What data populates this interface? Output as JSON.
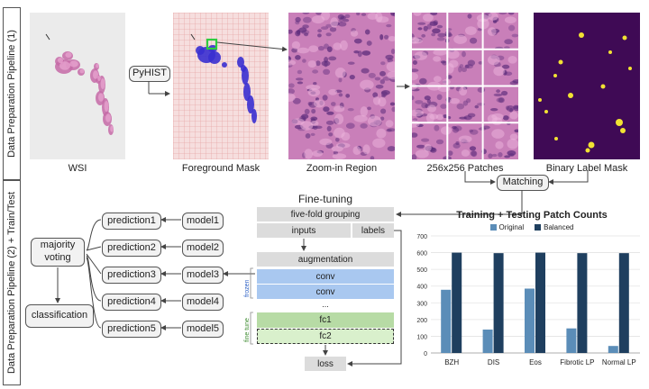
{
  "pipeline1": {
    "side_label": "Data Preparation Pipeline (1)",
    "captions": {
      "wsi": "WSI",
      "foreground_mask": "Foreground Mask",
      "zoom_in": "Zoom-in Region",
      "patches": "256x256 Patches",
      "binary_mask": "Binary Label Mask"
    },
    "pyhist_label": "PyHIST",
    "matching_label": "Matching"
  },
  "pipeline2": {
    "side_label": "Data Preparation Pipeline (2) + Train/Test",
    "majority_voting": "majority voting",
    "classification": "classification",
    "predictions": [
      "prediction1",
      "prediction2",
      "prediction3",
      "prediction4",
      "prediction5"
    ],
    "models": [
      "model1",
      "model2",
      "model3",
      "model4",
      "model5"
    ]
  },
  "finetune": {
    "title": "Fine-tuning",
    "grouping": "five-fold grouping",
    "inputs": "inputs",
    "labels": "labels",
    "augmentation": "augmentation",
    "conv1": "conv",
    "conv2": "conv",
    "ellipsis": "...",
    "fc1": "fc1",
    "fc2": "fc2",
    "loss": "loss",
    "frozen_label": "frozen",
    "finetune_label": "fine tune"
  },
  "chart_data": {
    "type": "bar",
    "title": "Training + Testing Patch Counts",
    "categories": [
      "BZH",
      "DIS",
      "Eos",
      "Fibrotic LP",
      "Normal LP"
    ],
    "series": [
      {
        "name": "Original",
        "values": [
          378,
          140,
          385,
          147,
          42
        ],
        "color": "#5b8db8"
      },
      {
        "name": "Balanced",
        "values": [
          600,
          597,
          600,
          597,
          597
        ],
        "color": "#1f3f5f"
      }
    ],
    "ylim": [
      0,
      700
    ],
    "yticks": [
      0,
      100,
      200,
      300,
      400,
      500,
      600,
      700
    ],
    "grid": true,
    "legend": "top"
  },
  "colors": {
    "tissue_pink": "#d58bbf",
    "mask_blue": "#3a2fd0",
    "mask_bg": "#f3d6d6",
    "label_mask_bg": "#3f0a55",
    "label_mask_spot": "#f2e233",
    "highlight_green": "#2ecc40"
  }
}
